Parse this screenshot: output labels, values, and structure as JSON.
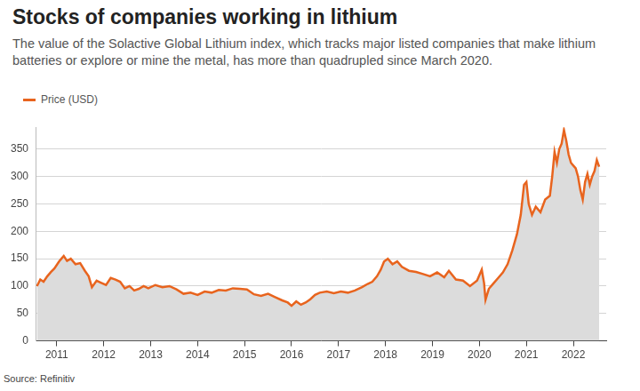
{
  "chart_data": {
    "type": "line",
    "title": "Stocks of companies working in lithium",
    "subtitle": "The value of the Solactive Global Lithium index, which tracks major listed companies that make lithium batteries or explore or mine the metal, has more than quadrupled since March 2020.",
    "source": "Source: Refinitiv",
    "x": [
      2010.58,
      2010.65,
      2010.72,
      2010.8,
      2010.88,
      2010.95,
      2011.05,
      2011.1,
      2011.15,
      2011.22,
      2011.3,
      2011.4,
      2011.5,
      2011.6,
      2011.68,
      2011.75,
      2011.85,
      2011.95,
      2012.05,
      2012.15,
      2012.25,
      2012.35,
      2012.45,
      2012.55,
      2012.65,
      2012.75,
      2012.85,
      2012.95,
      2013.1,
      2013.25,
      2013.4,
      2013.55,
      2013.7,
      2013.85,
      2014.0,
      2014.15,
      2014.3,
      2014.45,
      2014.6,
      2014.75,
      2014.9,
      2015.05,
      2015.2,
      2015.35,
      2015.5,
      2015.65,
      2015.8,
      2015.92,
      2016.0,
      2016.1,
      2016.2,
      2016.3,
      2016.4,
      2016.5,
      2016.6,
      2016.75,
      2016.9,
      2017.05,
      2017.2,
      2017.35,
      2017.5,
      2017.62,
      2017.72,
      2017.82,
      2017.9,
      2017.97,
      2018.05,
      2018.15,
      2018.25,
      2018.35,
      2018.5,
      2018.65,
      2018.8,
      2018.95,
      2019.1,
      2019.25,
      2019.35,
      2019.5,
      2019.65,
      2019.8,
      2019.95,
      2020.05,
      2020.1,
      2020.13,
      2020.2,
      2020.3,
      2020.4,
      2020.5,
      2020.6,
      2020.7,
      2020.8,
      2020.88,
      2020.95,
      2021.0,
      2021.05,
      2021.12,
      2021.2,
      2021.3,
      2021.4,
      2021.5,
      2021.55,
      2021.6,
      2021.65,
      2021.7,
      2021.75,
      2021.8,
      2021.85,
      2021.9,
      2021.95,
      2022.0,
      2022.05,
      2022.1,
      2022.15,
      2022.2,
      2022.25,
      2022.3,
      2022.35,
      2022.4,
      2022.45,
      2022.5,
      2022.55
    ],
    "series": [
      {
        "name": "Price (USD)",
        "color": "#e8641e",
        "values": [
          100,
          112,
          108,
          118,
          126,
          132,
          145,
          150,
          155,
          146,
          150,
          140,
          142,
          128,
          118,
          98,
          110,
          106,
          102,
          115,
          112,
          108,
          96,
          100,
          92,
          95,
          100,
          96,
          102,
          98,
          100,
          94,
          86,
          88,
          84,
          90,
          88,
          93,
          92,
          96,
          95,
          94,
          85,
          82,
          86,
          80,
          74,
          70,
          64,
          72,
          66,
          70,
          76,
          84,
          88,
          90,
          87,
          90,
          88,
          92,
          98,
          104,
          108,
          118,
          130,
          145,
          150,
          140,
          145,
          135,
          128,
          126,
          122,
          118,
          125,
          116,
          128,
          112,
          110,
          100,
          110,
          130,
          105,
          75,
          95,
          105,
          115,
          125,
          140,
          165,
          195,
          230,
          285,
          290,
          250,
          230,
          245,
          235,
          258,
          265,
          300,
          345,
          325,
          350,
          360,
          385,
          365,
          340,
          325,
          320,
          315,
          300,
          275,
          258,
          290,
          305,
          285,
          300,
          310,
          330,
          318
        ]
      }
    ],
    "xlim": [
      2010.55,
      2022.7
    ],
    "xticks": [
      2011,
      2012,
      2013,
      2014,
      2015,
      2016,
      2017,
      2018,
      2019,
      2020,
      2021,
      2022
    ],
    "ylim": [
      0,
      390
    ],
    "yticks": [
      0,
      50,
      100,
      150,
      200,
      250,
      300,
      350
    ],
    "grid": true
  }
}
